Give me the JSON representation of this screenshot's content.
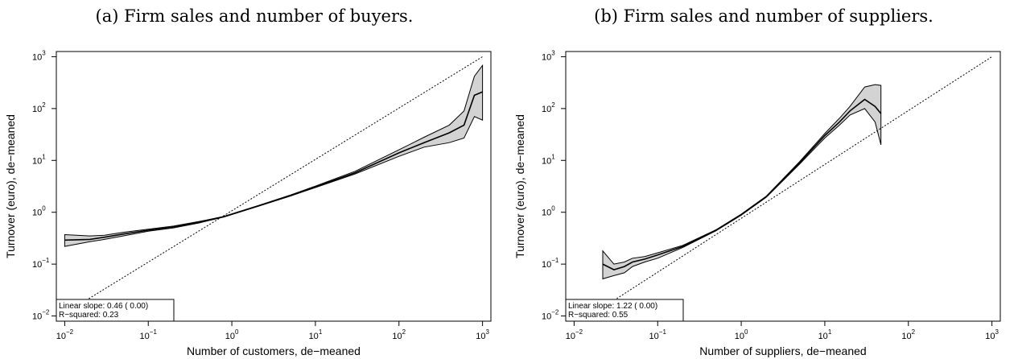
{
  "chart_data": [
    {
      "type": "line",
      "caption": "(a) Firm sales and number of buyers.",
      "xlabel": "Number of customers, de−meaned",
      "ylabel": "Turnover (euro), de−meaned",
      "xscale": "log",
      "yscale": "log",
      "xlim": [
        0.00794,
        1259
      ],
      "ylim": [
        0.00794,
        1259
      ],
      "x_ticks": [
        {
          "value": 0.01,
          "base": "10",
          "exp": "−2"
        },
        {
          "value": 0.1,
          "base": "10",
          "exp": "−1"
        },
        {
          "value": 1,
          "base": "10",
          "exp": "0"
        },
        {
          "value": 10,
          "base": "10",
          "exp": "1"
        },
        {
          "value": 100,
          "base": "10",
          "exp": "2"
        },
        {
          "value": 1000,
          "base": "10",
          "exp": "3"
        }
      ],
      "y_ticks": [
        {
          "value": 0.01,
          "base": "10",
          "exp": "−2"
        },
        {
          "value": 0.1,
          "base": "10",
          "exp": "−1"
        },
        {
          "value": 1,
          "base": "10",
          "exp": "0"
        },
        {
          "value": 10,
          "base": "10",
          "exp": "1"
        },
        {
          "value": 100,
          "base": "10",
          "exp": "2"
        },
        {
          "value": 1000,
          "base": "10",
          "exp": "3"
        }
      ],
      "stats": [
        "Linear slope:  0.46 ( 0.00)",
        "R−squared:  0.23"
      ],
      "stats_position": "bottom-left",
      "grid": false,
      "series": [
        {
          "role": "fit",
          "style": "solid",
          "x": [
            0.01,
            0.02,
            0.03,
            0.05,
            0.1,
            0.2,
            0.4,
            0.8,
            2,
            5,
            10,
            30,
            100,
            200,
            400,
            600,
            800,
            1000
          ],
          "y": [
            0.29,
            0.3,
            0.33,
            0.38,
            0.45,
            0.52,
            0.64,
            0.82,
            1.3,
            2.1,
            3.1,
            5.8,
            14,
            22,
            34,
            48,
            180,
            210
          ],
          "lower": [
            0.22,
            0.27,
            0.3,
            0.35,
            0.43,
            0.5,
            0.62,
            0.81,
            1.28,
            2.05,
            3.0,
            5.5,
            12,
            18,
            22,
            27,
            70,
            60
          ],
          "upper": [
            0.37,
            0.35,
            0.36,
            0.41,
            0.47,
            0.54,
            0.66,
            0.83,
            1.32,
            2.15,
            3.2,
            6.2,
            16,
            28,
            48,
            90,
            420,
            680
          ]
        },
        {
          "role": "reference",
          "style": "dotted",
          "x": [
            0.018,
            1000
          ],
          "y": [
            0.02,
            1000
          ]
        }
      ]
    },
    {
      "type": "line",
      "caption": "(b) Firm sales and number of suppliers.",
      "xlabel": "Number of suppliers, de−meaned",
      "ylabel": "Turnover (euro), de−meaned",
      "xscale": "log",
      "yscale": "log",
      "xlim": [
        0.00794,
        1259
      ],
      "ylim": [
        0.00794,
        1259
      ],
      "x_ticks": [
        {
          "value": 0.01,
          "base": "10",
          "exp": "−2"
        },
        {
          "value": 0.1,
          "base": "10",
          "exp": "−1"
        },
        {
          "value": 1,
          "base": "10",
          "exp": "0"
        },
        {
          "value": 10,
          "base": "10",
          "exp": "1"
        },
        {
          "value": 100,
          "base": "10",
          "exp": "2"
        },
        {
          "value": 1000,
          "base": "10",
          "exp": "3"
        }
      ],
      "y_ticks": [
        {
          "value": 0.01,
          "base": "10",
          "exp": "−2"
        },
        {
          "value": 0.1,
          "base": "10",
          "exp": "−1"
        },
        {
          "value": 1,
          "base": "10",
          "exp": "0"
        },
        {
          "value": 10,
          "base": "10",
          "exp": "1"
        },
        {
          "value": 100,
          "base": "10",
          "exp": "2"
        },
        {
          "value": 1000,
          "base": "10",
          "exp": "3"
        }
      ],
      "stats": [
        "Linear slope:  1.22 ( 0.00)",
        "R−squared:  0.55"
      ],
      "stats_position": "bottom-left",
      "grid": false,
      "series": [
        {
          "role": "fit",
          "style": "solid",
          "x": [
            0.022,
            0.03,
            0.04,
            0.05,
            0.07,
            0.1,
            0.2,
            0.5,
            1,
            2,
            5,
            10,
            15,
            20,
            30,
            40,
            47
          ],
          "y": [
            0.1,
            0.078,
            0.09,
            0.11,
            0.125,
            0.15,
            0.22,
            0.45,
            0.9,
            2.0,
            9,
            30,
            55,
            90,
            150,
            110,
            80
          ],
          "lower": [
            0.052,
            0.06,
            0.068,
            0.09,
            0.11,
            0.13,
            0.21,
            0.44,
            0.88,
            1.95,
            8.5,
            27,
            48,
            75,
            100,
            55,
            20
          ],
          "upper": [
            0.18,
            0.1,
            0.11,
            0.13,
            0.14,
            0.165,
            0.23,
            0.46,
            0.92,
            2.05,
            9.5,
            33,
            65,
            110,
            260,
            290,
            280
          ]
        },
        {
          "role": "reference",
          "style": "dotted",
          "x": [
            0.03,
            1000
          ],
          "y": [
            0.02,
            1000
          ]
        }
      ]
    }
  ]
}
